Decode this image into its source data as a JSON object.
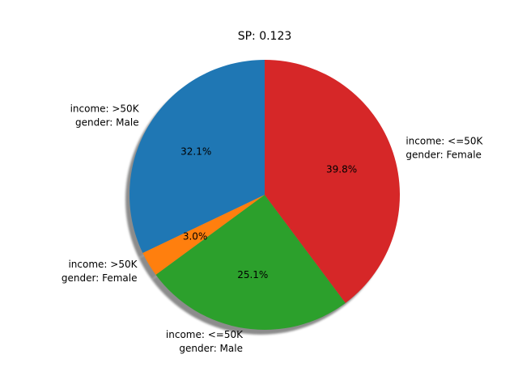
{
  "chart_data": {
    "type": "pie",
    "title": "SP: 0.123",
    "start_angle_deg": 90,
    "direction": "counterclockwise",
    "shadow": true,
    "slices": [
      {
        "label_lines": [
          "income: >50K",
          "gender: Male"
        ],
        "percent_label": "32.1%",
        "value": 32.1,
        "color": "#1f77b4"
      },
      {
        "label_lines": [
          "income: >50K",
          "gender: Female"
        ],
        "percent_label": "3.0%",
        "value": 3.0,
        "color": "#ff7f0e"
      },
      {
        "label_lines": [
          "income: <=50K",
          "gender: Male"
        ],
        "percent_label": "25.1%",
        "value": 25.1,
        "color": "#2ca02c"
      },
      {
        "label_lines": [
          "income: <=50K",
          "gender: Female"
        ],
        "percent_label": "39.8%",
        "value": 39.8,
        "color": "#d62728"
      }
    ]
  }
}
